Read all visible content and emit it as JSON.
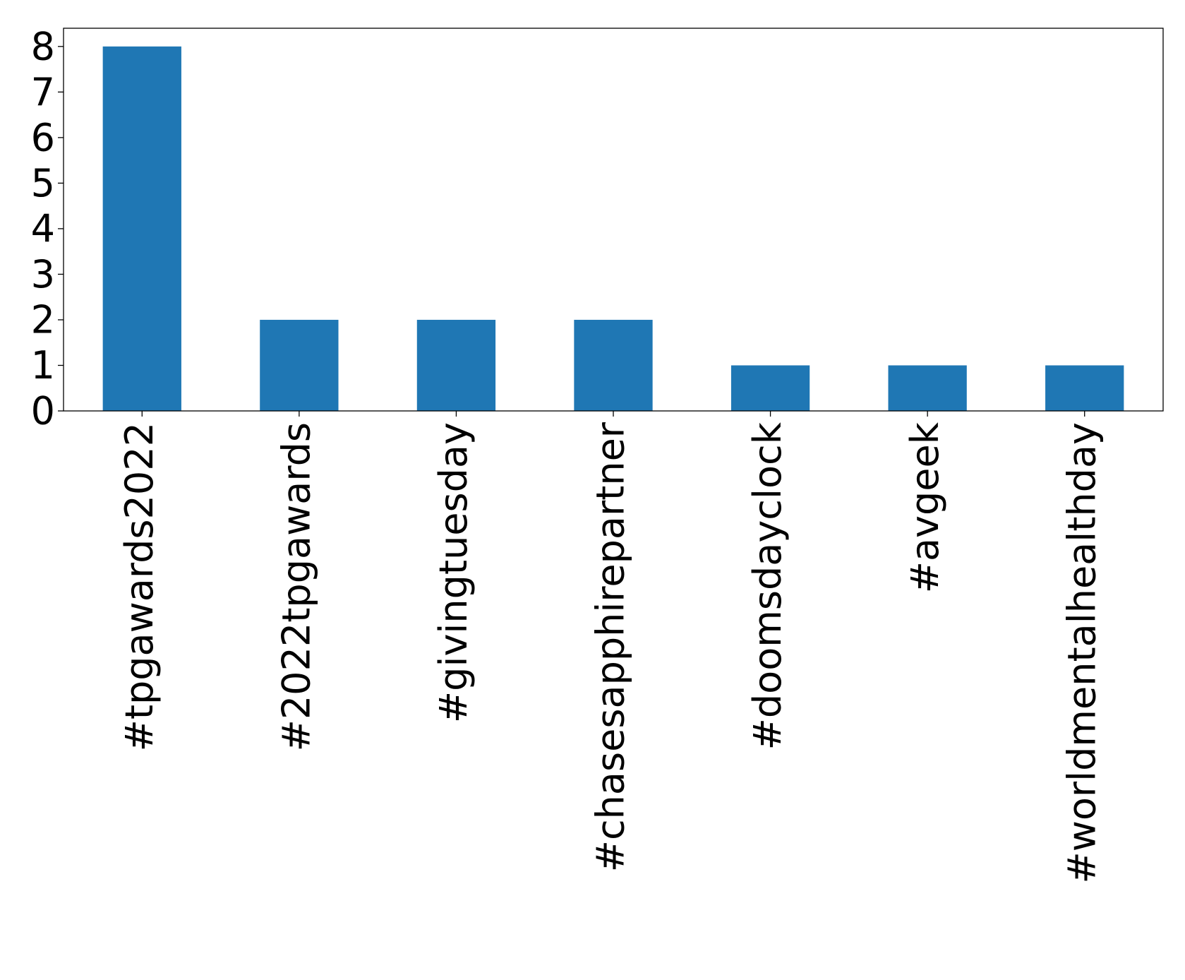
{
  "chart_data": {
    "type": "bar",
    "title": "",
    "xlabel": "",
    "ylabel": "",
    "categories": [
      "#tpgawards2022",
      "#2022tpgawards",
      "#givingtuesday",
      "#chasesapphirepartner",
      "#doomsdayclock",
      "#avgeek",
      "#worldmentalhealthday"
    ],
    "values": [
      8,
      2,
      2,
      2,
      1,
      1,
      1
    ],
    "ylim": [
      0,
      8.4
    ],
    "yticks": [
      0,
      1,
      2,
      3,
      4,
      5,
      6,
      7,
      8
    ],
    "grid": false,
    "legend": "none",
    "bar_color": "#1f77b4"
  }
}
